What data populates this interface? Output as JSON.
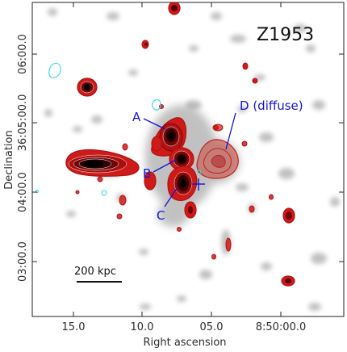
{
  "figure": {
    "field_name": "Z1953",
    "x_axis_title": "Right ascension",
    "y_axis_title": "Declination",
    "x_tick_labels": [
      "15.0",
      "10.0",
      "05.0",
      "8:50:00.0"
    ],
    "y_tick_labels": [
      "06:00.0",
      "36:05:00.0",
      "04:00.0",
      "03:00.0"
    ],
    "scale_bar_label": "200 kpc",
    "components": [
      {
        "id": "A",
        "text": "A"
      },
      {
        "id": "B",
        "text": "B"
      },
      {
        "id": "C",
        "text": "C"
      },
      {
        "id": "D",
        "text": "D (diffuse)"
      }
    ],
    "colors": {
      "radio_contour": "#b01010",
      "radio_fill": "#cf1a1a",
      "negative_contour": "#33d6e6",
      "annotation": "#1414d2",
      "xray_gray": "#8f8f8f",
      "frame": "#222222"
    }
  }
}
